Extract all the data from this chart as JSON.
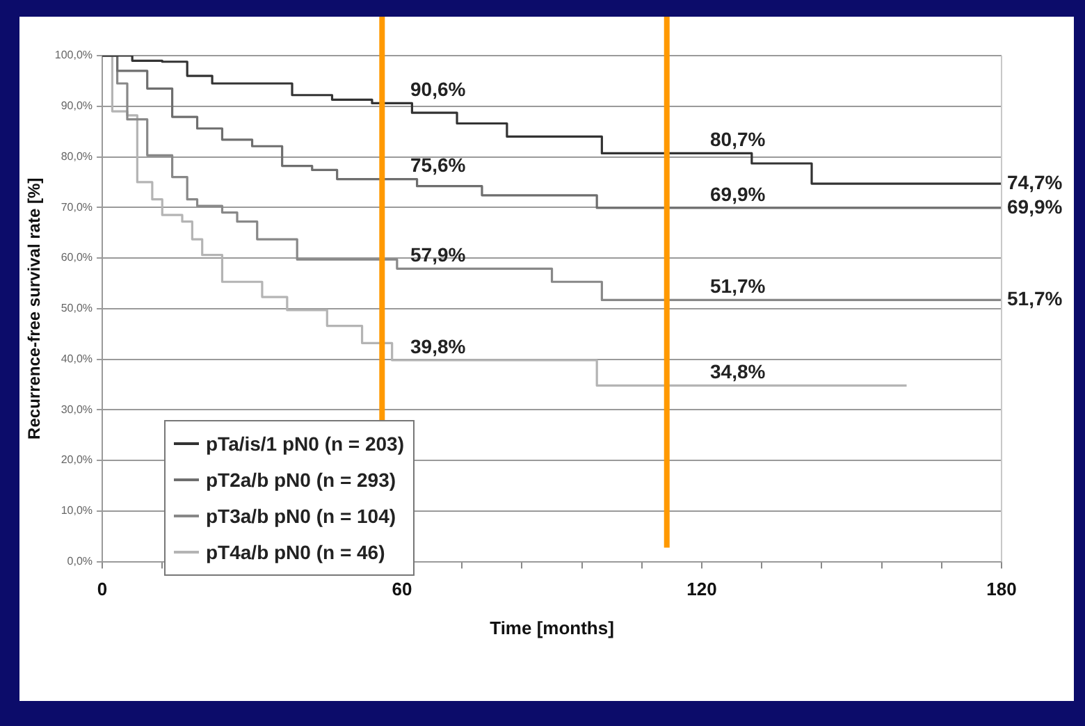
{
  "chart_data": {
    "type": "step",
    "xlabel": "Time [months]",
    "ylabel": "Recurrence-free survival rate [%]",
    "xlim": [
      0,
      180
    ],
    "xticks": [
      0,
      {
        "value": 12,
        "label": null
      },
      {
        "value": 24,
        "label": null
      },
      {
        "value": 36,
        "label": null
      },
      {
        "value": 48,
        "label": null
      },
      60,
      {
        "value": 72,
        "label": null
      },
      {
        "value": 84,
        "label": null
      },
      {
        "value": 96,
        "label": null
      },
      {
        "value": 108,
        "label": null
      },
      120,
      {
        "value": 132,
        "label": null
      },
      {
        "value": 144,
        "label": null
      },
      {
        "value": 156,
        "label": null
      },
      {
        "value": 168,
        "label": null
      },
      180
    ],
    "ylim": [
      0,
      100
    ],
    "yticks": [
      {
        "value": 0,
        "label": "0,0%"
      },
      {
        "value": 10,
        "label": "10,0%"
      },
      {
        "value": 20,
        "label": "20,0%"
      },
      {
        "value": 30,
        "label": "30,0%"
      },
      {
        "value": 40,
        "label": "40,0%"
      },
      {
        "value": 50,
        "label": "50,0%"
      },
      {
        "value": 60,
        "label": "60,0%"
      },
      {
        "value": 70,
        "label": "70,0%"
      },
      {
        "value": 80,
        "label": "80,0%"
      },
      {
        "value": 90,
        "label": "90,0%"
      },
      {
        "value": 100,
        "label": "100,0%"
      }
    ],
    "grid": "y",
    "legend": "bottom left",
    "marker": "none",
    "line_style": "solid",
    "series": [
      {
        "name": "pTa/is/1 pN0 (n = 203)",
        "color": "#333333",
        "x": [
          0,
          5,
          6,
          12,
          17,
          22,
          38,
          46,
          54,
          62,
          71,
          81,
          100,
          130,
          142,
          180
        ],
        "values": [
          100,
          100,
          99,
          98.8,
          96,
          94.5,
          92.2,
          91.3,
          90.6,
          88.7,
          86.6,
          84,
          80.7,
          78.7,
          74.7,
          74.7
        ]
      },
      {
        "name": "pT2a/b pN0 (n = 293)",
        "color": "#6e6e6e",
        "x": [
          0,
          3,
          9,
          14,
          19,
          24,
          30,
          36,
          42,
          47,
          63,
          76,
          99,
          180
        ],
        "values": [
          100,
          97,
          93.5,
          87.9,
          85.6,
          83.4,
          82.1,
          78.2,
          77.4,
          75.6,
          74.2,
          72.4,
          69.9,
          69.9
        ]
      },
      {
        "name": "pT3a/b pN0 (n = 104)",
        "color": "#888888",
        "x": [
          0,
          3,
          5,
          9,
          14,
          17,
          19,
          24,
          27,
          31,
          39,
          59,
          90,
          100,
          180
        ],
        "values": [
          100,
          94.5,
          87.4,
          80.3,
          76,
          71.6,
          70.3,
          69,
          67.2,
          63.7,
          59.7,
          57.9,
          55.3,
          51.7,
          51.7
        ]
      },
      {
        "name": "pT4a/b pN0 (n = 46)",
        "color": "#b4b4b4",
        "x": [
          0,
          2,
          5,
          7,
          10,
          12,
          16,
          18,
          20,
          24,
          32,
          37,
          45,
          52,
          58,
          99,
          161
        ],
        "values": [
          100,
          89,
          88.2,
          75,
          71.6,
          68.5,
          67.2,
          63.7,
          60.6,
          55.3,
          52.3,
          49.7,
          46.6,
          43.2,
          39.8,
          34.8,
          34.8
        ]
      }
    ],
    "ref_lines": [
      {
        "axis": "x",
        "value": 56,
        "color": "#ff9900"
      },
      {
        "axis": "x",
        "value": 113,
        "color": "#ff9900"
      }
    ],
    "annotations": [
      {
        "text": "90,6%",
        "x": 60,
        "y": 90.6
      },
      {
        "text": "80,7%",
        "x": 120,
        "y": 80.7
      },
      {
        "text": "74,7%",
        "x": 180,
        "y": 74.7
      },
      {
        "text": "75,6%",
        "x": 60,
        "y": 75.6
      },
      {
        "text": "69,9%",
        "x": 120,
        "y": 69.9
      },
      {
        "text": "69,9%",
        "x": 180,
        "y": 69.9
      },
      {
        "text": "57,9%",
        "x": 60,
        "y": 57.9
      },
      {
        "text": "51,7%",
        "x": 120,
        "y": 51.7
      },
      {
        "text": "51,7%",
        "x": 180,
        "y": 51.7
      },
      {
        "text": "39,8%",
        "x": 60,
        "y": 39.8
      },
      {
        "text": "34,8%",
        "x": 120,
        "y": 34.8
      }
    ]
  }
}
